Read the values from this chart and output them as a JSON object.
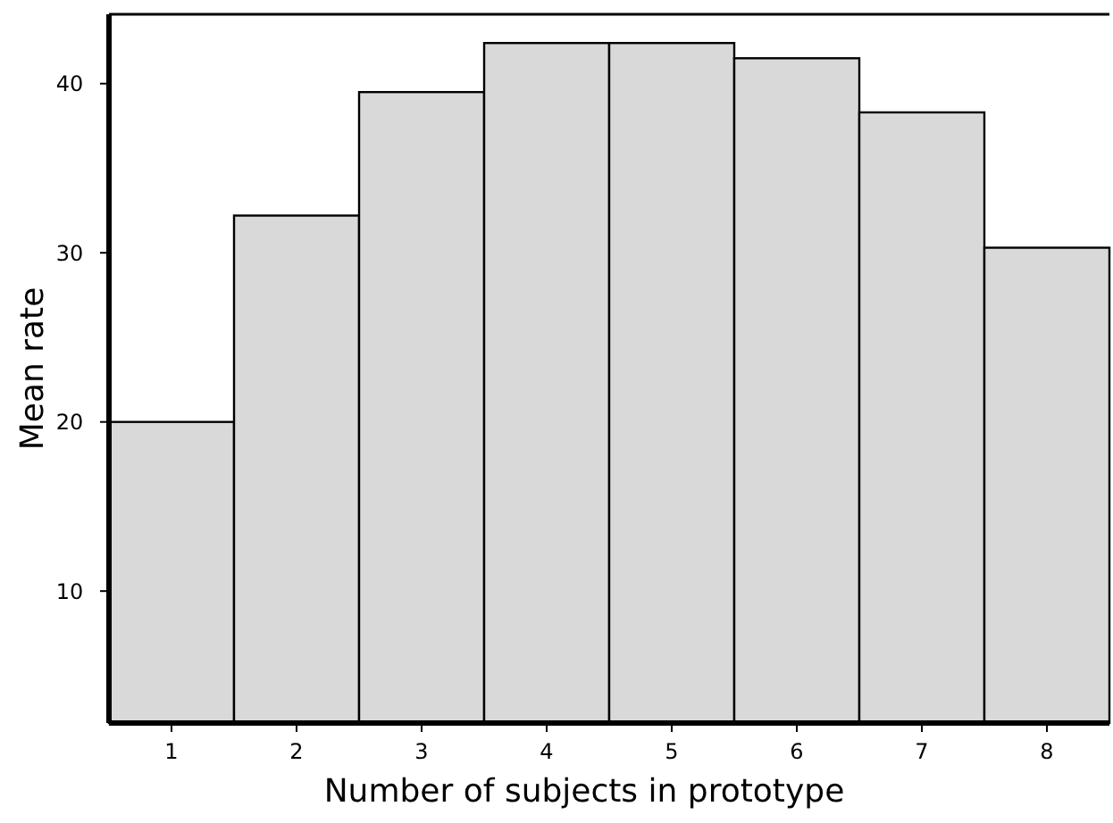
{
  "chart_data": {
    "type": "bar",
    "xlabel": "Number of subjects in prototype",
    "ylabel": "Mean rate",
    "categories": [
      "1",
      "2",
      "3",
      "4",
      "5",
      "6",
      "7",
      "8"
    ],
    "values": [
      20.0,
      32.2,
      39.5,
      42.4,
      42.4,
      41.5,
      38.3,
      30.3
    ],
    "color": "#d9d9d9",
    "ylim": [
      2.2,
      44.1
    ],
    "yticks": [
      10,
      20,
      30,
      40
    ],
    "grid": false
  }
}
